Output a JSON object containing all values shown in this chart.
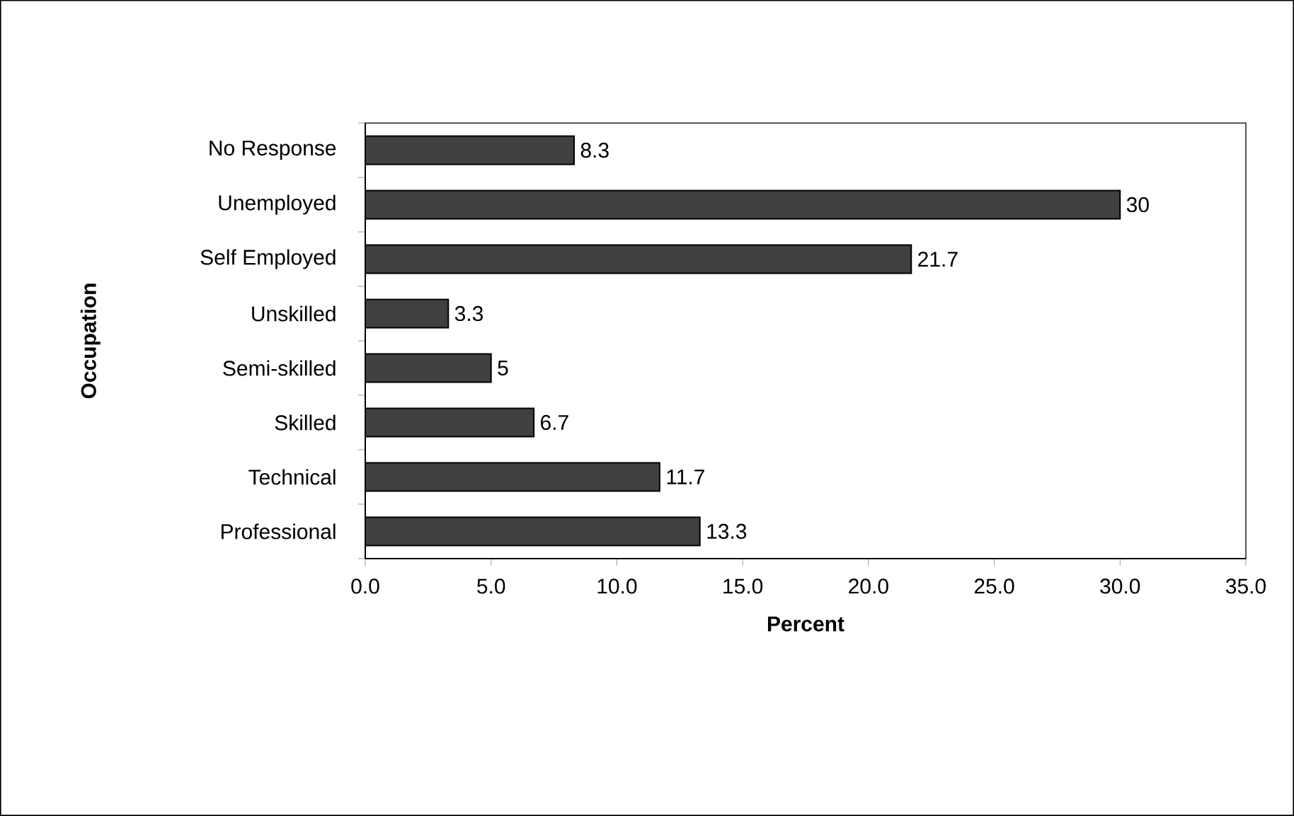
{
  "chart_data": {
    "type": "bar",
    "orientation": "horizontal",
    "xlabel": "Percent",
    "ylabel": "Occupation",
    "categories": [
      "No Response",
      "Unemployed",
      "Self Employed",
      "Unskilled",
      "Semi-skilled",
      "Skilled",
      "Technical",
      "Professional"
    ],
    "values": [
      8.3,
      30,
      21.7,
      3.3,
      5,
      6.7,
      11.7,
      13.3
    ],
    "color": "#404040",
    "data_labels": true,
    "xlim": [
      0,
      35
    ],
    "xticks": [
      {
        "value": 0,
        "label": "0.0"
      },
      {
        "value": 5,
        "label": "5.0"
      },
      {
        "value": 10,
        "label": "10.0"
      },
      {
        "value": 15,
        "label": "15.0"
      },
      {
        "value": 20,
        "label": "20.0"
      },
      {
        "value": 25,
        "label": "25.0"
      },
      {
        "value": 30,
        "label": "30.0"
      },
      {
        "value": 35,
        "label": "35.0"
      }
    ]
  }
}
